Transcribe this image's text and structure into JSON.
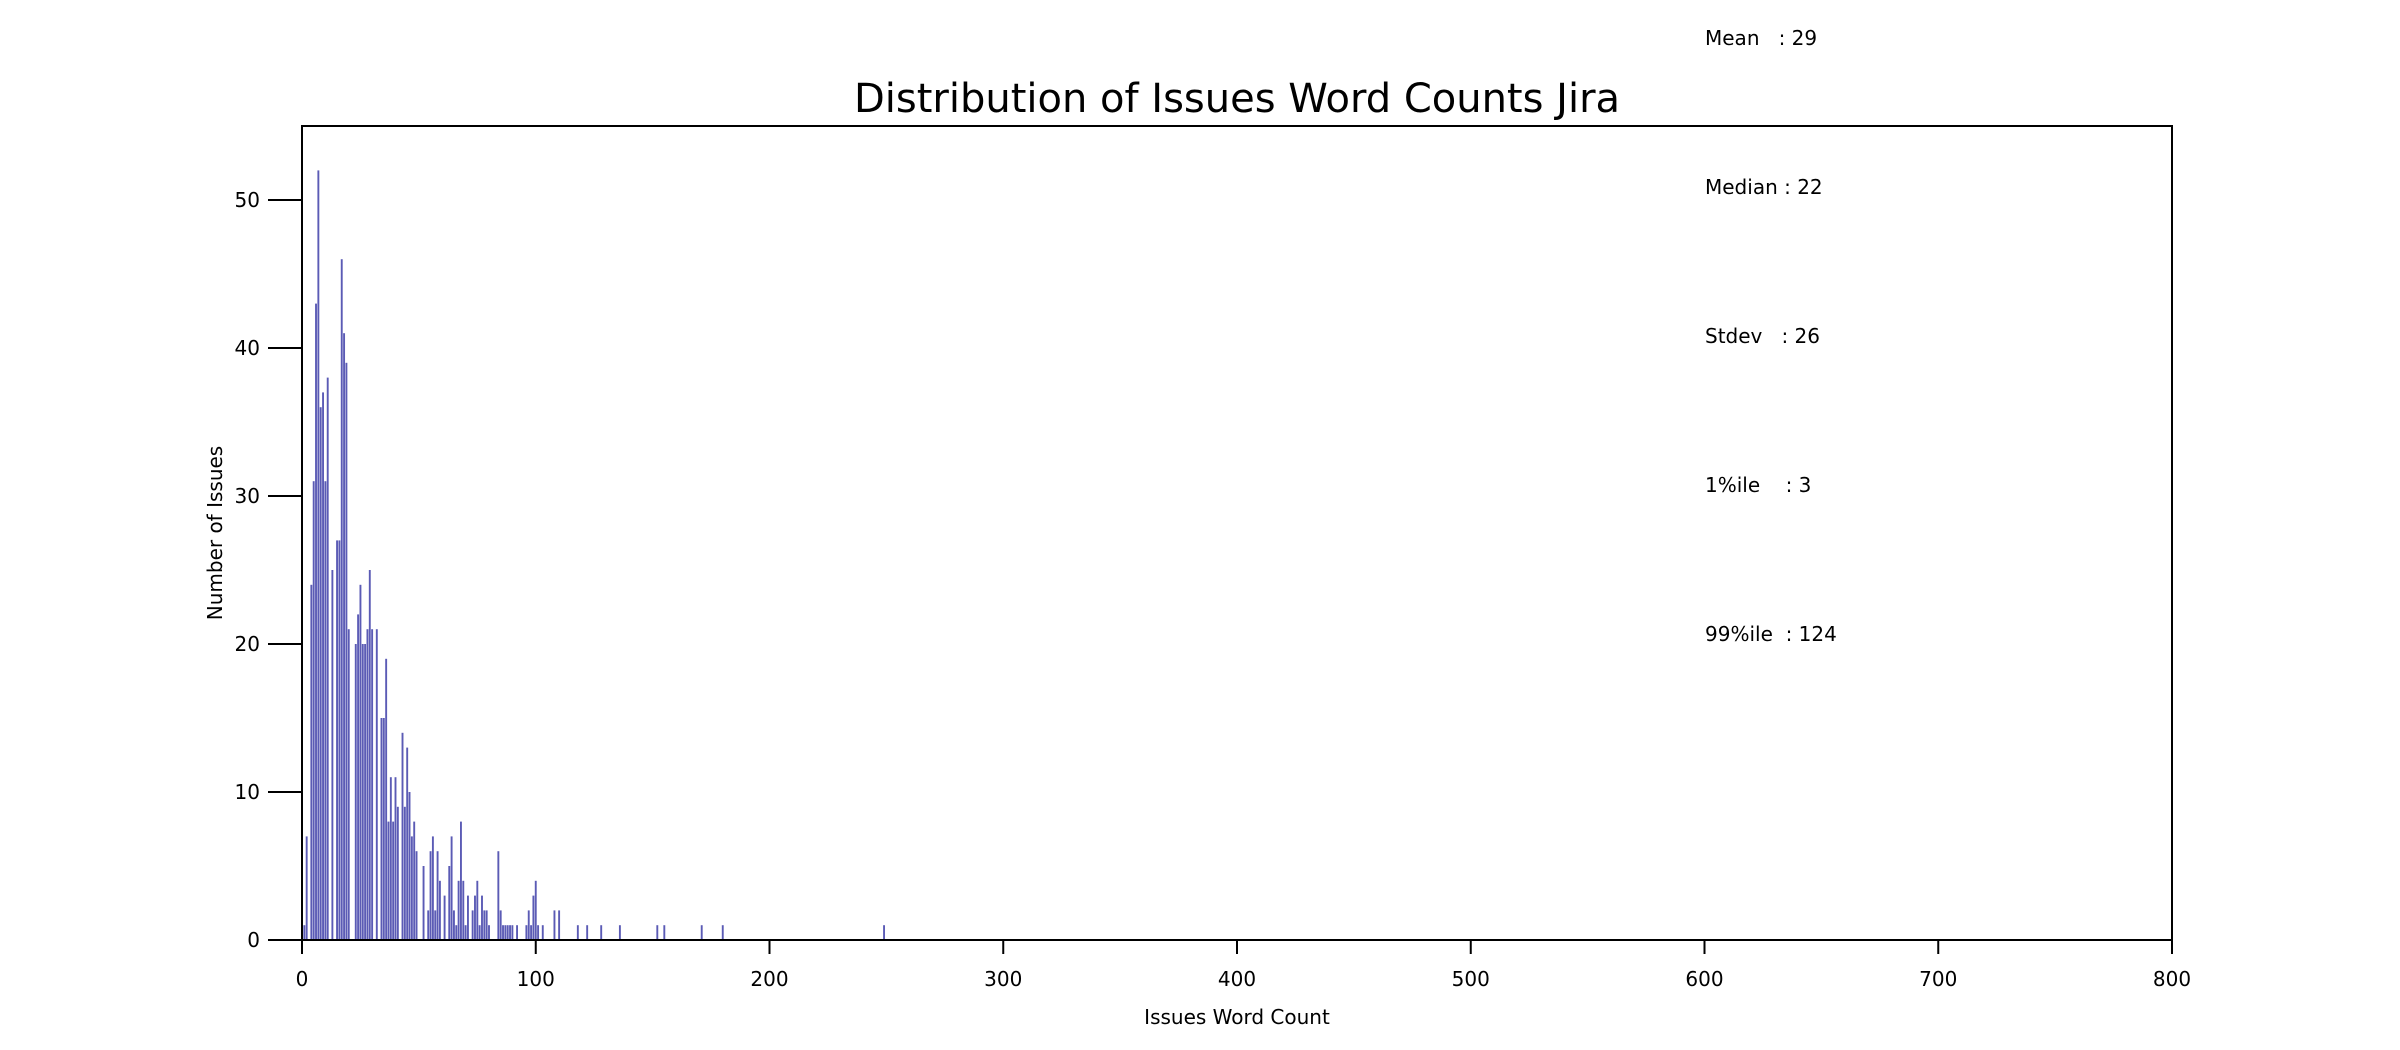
{
  "chart_data": {
    "type": "bar",
    "title": "Distribution of Issues Word Counts Jira",
    "xlabel": "Issues Word Count",
    "ylabel": "Number of Issues",
    "xlim": [
      0,
      800
    ],
    "ylim": [
      0,
      55
    ],
    "x_ticks": [
      "0",
      "100",
      "200",
      "300",
      "400",
      "500",
      "600",
      "700",
      "800"
    ],
    "y_ticks": [
      "0",
      "10",
      "20",
      "30",
      "40",
      "50"
    ],
    "grid": false,
    "bar_color": "#5b5bb5",
    "x": [
      1,
      2,
      3,
      4,
      5,
      6,
      7,
      8,
      9,
      10,
      11,
      12,
      13,
      14,
      15,
      16,
      17,
      18,
      19,
      20,
      21,
      22,
      23,
      24,
      25,
      26,
      27,
      28,
      29,
      30,
      31,
      32,
      33,
      34,
      35,
      36,
      37,
      38,
      39,
      40,
      41,
      42,
      43,
      44,
      45,
      46,
      47,
      48,
      49,
      50,
      51,
      52,
      53,
      54,
      55,
      56,
      57,
      58,
      59,
      60,
      61,
      62,
      63,
      64,
      65,
      66,
      67,
      68,
      69,
      70,
      71,
      72,
      73,
      74,
      75,
      76,
      77,
      78,
      79,
      80,
      81,
      82,
      83,
      84,
      85,
      86,
      87,
      88,
      89,
      90,
      91,
      92,
      96,
      97,
      98,
      99,
      100,
      101,
      103,
      108,
      110,
      118,
      122,
      128,
      136,
      152,
      155,
      171,
      180,
      249
    ],
    "values": [
      1,
      7,
      0,
      24,
      31,
      43,
      52,
      36,
      37,
      31,
      38,
      0,
      25,
      0,
      27,
      27,
      46,
      41,
      39,
      21,
      0,
      0,
      20,
      22,
      24,
      20,
      20,
      21,
      25,
      21,
      0,
      21,
      0,
      15,
      15,
      19,
      8,
      11,
      8,
      11,
      9,
      0,
      14,
      9,
      13,
      10,
      7,
      8,
      6,
      0,
      0,
      5,
      0,
      2,
      6,
      7,
      2,
      6,
      4,
      0,
      3,
      0,
      5,
      7,
      2,
      1,
      4,
      8,
      4,
      1,
      3,
      0,
      2,
      3,
      4,
      1,
      3,
      2,
      2,
      1,
      0,
      0,
      0,
      6,
      2,
      1,
      1,
      1,
      1,
      1,
      0,
      1,
      1,
      2,
      1,
      3,
      4,
      1,
      1,
      2,
      2,
      1,
      1,
      1,
      1,
      1,
      1,
      1,
      1,
      1
    ]
  },
  "stats": {
    "mean": "Mean   : 29",
    "median": "Median : 22",
    "stdev": "Stdev   : 26",
    "p1": "1%ile    : 3",
    "p99": "99%ile  : 124"
  }
}
